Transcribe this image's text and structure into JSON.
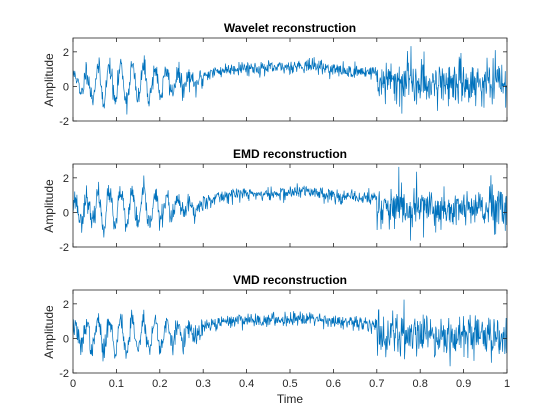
{
  "chart_data": [
    {
      "type": "line",
      "title": "Wavelet reconstruction",
      "ylabel": "Amplitude",
      "xlabel": "",
      "xlim": [
        0,
        1
      ],
      "ylim": [
        -2,
        2.8
      ],
      "yticks": [
        2,
        0,
        -2
      ],
      "xticks_labeled": false,
      "grid": false,
      "legend": "none",
      "series": [
        {
          "color": "#0072bd",
          "samples": 1000,
          "seed": 11
        }
      ]
    },
    {
      "type": "line",
      "title": "EMD reconstruction",
      "ylabel": "Amplitude",
      "xlabel": "",
      "xlim": [
        0,
        1
      ],
      "ylim": [
        -2,
        2.8
      ],
      "yticks": [
        2,
        0,
        -2
      ],
      "xticks_labeled": false,
      "grid": false,
      "legend": "none",
      "series": [
        {
          "color": "#0072bd",
          "samples": 1000,
          "seed": 23
        }
      ]
    },
    {
      "type": "line",
      "title": "VMD reconstruction",
      "ylabel": "Amplitude",
      "xlabel": "Time",
      "xlim": [
        0,
        1
      ],
      "ylim": [
        -2,
        2.8
      ],
      "yticks": [
        2,
        0,
        -2
      ],
      "xticks": [
        "0",
        "0.1",
        "0.2",
        "0.3",
        "0.4",
        "0.5",
        "0.6",
        "0.7",
        "0.8",
        "0.9",
        "1"
      ],
      "xticks_labeled": true,
      "grid": false,
      "legend": "none",
      "series": [
        {
          "color": "#0072bd",
          "samples": 1000,
          "seed": 37
        }
      ]
    }
  ]
}
